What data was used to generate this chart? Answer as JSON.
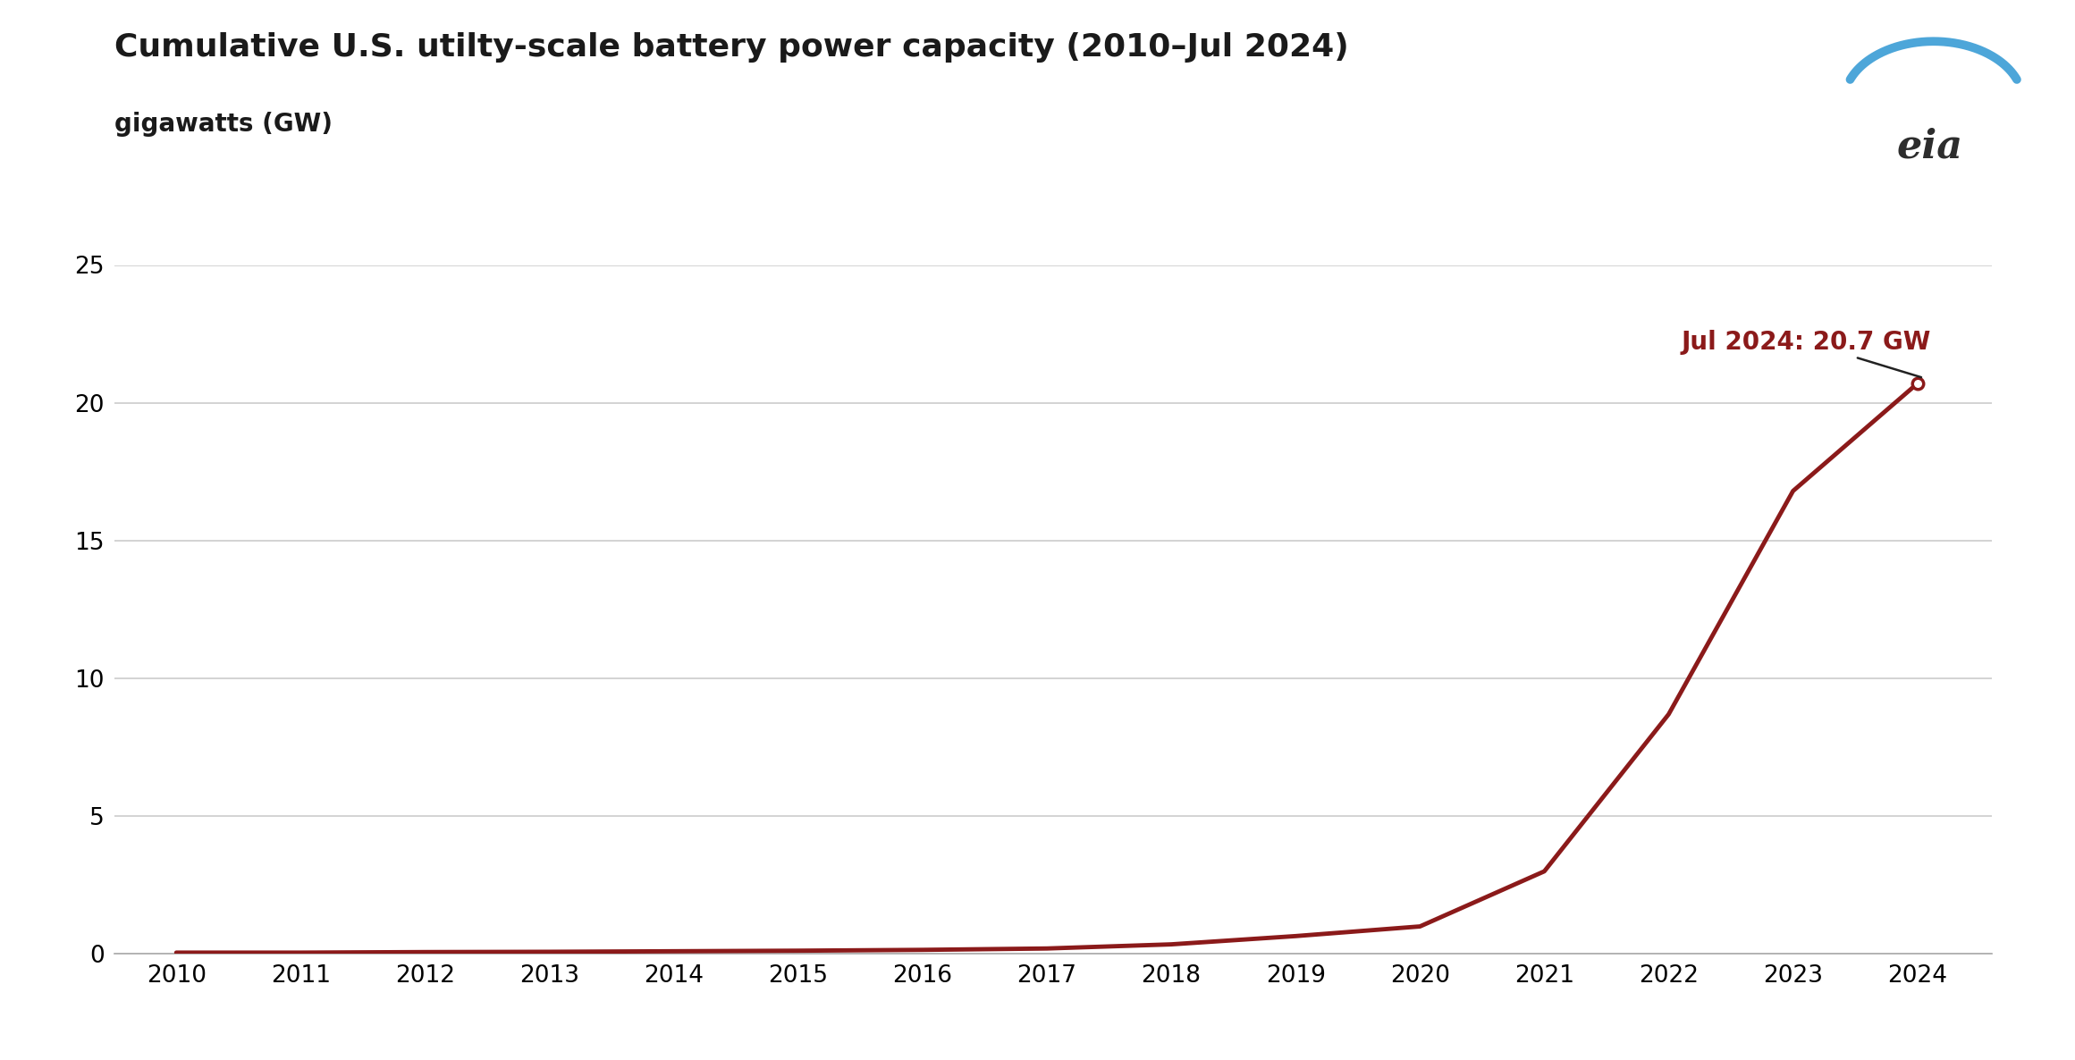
{
  "title": "Cumulative U.S. utilty-scale battery power capacity (2010–Jul 2024)",
  "subtitle": "gigawatts (GW)",
  "line_color": "#8B1A1A",
  "background_color": "#ffffff",
  "grid_color": "#cccccc",
  "annotation_text": "Jul 2024: 20.7 GW",
  "annotation_color": "#8B1A1A",
  "years": [
    2010,
    2011,
    2012,
    2013,
    2014,
    2015,
    2016,
    2017,
    2018,
    2019,
    2020,
    2021,
    2022,
    2023,
    2024
  ],
  "values": [
    0.05,
    0.05,
    0.07,
    0.08,
    0.1,
    0.12,
    0.15,
    0.2,
    0.35,
    0.65,
    1.0,
    3.0,
    8.7,
    16.8,
    20.7
  ],
  "ylim": [
    0,
    25
  ],
  "yticks": [
    0,
    5,
    10,
    15,
    20,
    25
  ],
  "xlim": [
    2009.5,
    2024.6
  ],
  "xticks": [
    2010,
    2011,
    2012,
    2013,
    2014,
    2015,
    2016,
    2017,
    2018,
    2019,
    2020,
    2021,
    2022,
    2023,
    2024
  ],
  "title_fontsize": 26,
  "subtitle_fontsize": 20,
  "tick_fontsize": 19,
  "annotation_fontsize": 20,
  "line_width": 3.5,
  "logo_arc_color": "#4da6d9",
  "logo_text_color": "#2d2d2d"
}
